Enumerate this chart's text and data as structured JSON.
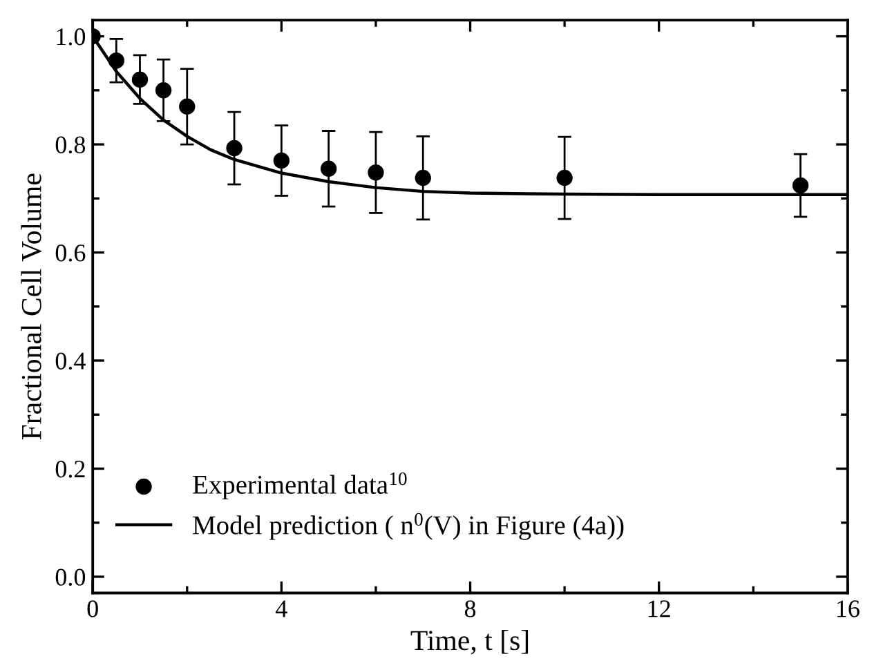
{
  "chart_data": {
    "type": "scatter",
    "xlabel": "Time, t [s]",
    "ylabel": "Fractional Cell Volume",
    "xlim": [
      0,
      16
    ],
    "ylim": [
      -0.03,
      1.03
    ],
    "xticks": [
      0,
      4,
      8,
      12,
      16
    ],
    "yticks": [
      {
        "value": 0.0,
        "label": "0.0"
      },
      {
        "value": 0.2,
        "label": "0.2"
      },
      {
        "value": 0.4,
        "label": "0.4"
      },
      {
        "value": 0.6,
        "label": "0.6"
      },
      {
        "value": 0.8,
        "label": "0.8"
      },
      {
        "value": 1.0,
        "label": "1.0"
      }
    ],
    "grid": false,
    "legend": "bottom left",
    "series": [
      {
        "name": "Experimental data$^{10}$",
        "marker": "circle",
        "color": "#000000",
        "x": [
          0,
          0.5,
          1,
          1.5,
          2,
          3,
          4,
          5,
          6,
          7,
          10,
          15
        ],
        "values": [
          1.0,
          0.955,
          0.92,
          0.9,
          0.87,
          0.793,
          0.77,
          0.755,
          0.748,
          0.738,
          0.738,
          0.724
        ],
        "errors": [
          null,
          0.04,
          0.045,
          0.057,
          0.07,
          0.067,
          0.065,
          0.07,
          0.075,
          0.077,
          0.076,
          0.058
        ]
      },
      {
        "name": "Model prediction ( n$^{0}$(V) in Figure (4a))",
        "type": "line",
        "marker": "none",
        "color": "#000000",
        "line_style": "solid",
        "x": [
          0,
          0.5,
          1,
          1.5,
          2,
          2.5,
          3,
          4,
          5,
          6,
          7,
          8,
          10,
          12,
          16
        ],
        "values": [
          1.0,
          0.935,
          0.885,
          0.845,
          0.815,
          0.79,
          0.772,
          0.747,
          0.731,
          0.72,
          0.713,
          0.71,
          0.708,
          0.707,
          0.707
        ]
      }
    ]
  }
}
